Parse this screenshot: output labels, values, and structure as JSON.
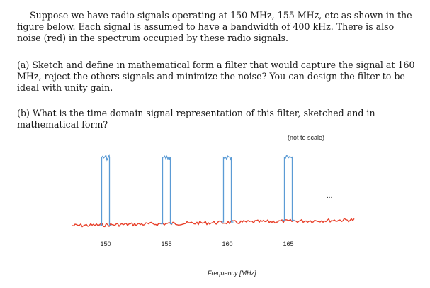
{
  "document": {
    "intro": "Suppose we have radio signals operating at 150 MHz, 155 MHz, etc as shown in the figure below.  Each signal is assumed to have a bandwidth of 400 kHz.  There is also noise (red) in the spectrum occupied by these radio signals.",
    "part_a": "(a) Sketch and define in mathematical form a filter that would capture the signal at 160 MHz, reject the others signals and minimize the noise?  You can design the filter to be ideal with unity gain.",
    "part_b": "(b) What is the time domain signal representation of this filter, sketched and in mathematical form?"
  },
  "figure": {
    "note": "(not to scale)",
    "xlabel": "Frequency [MHz]",
    "continuation": "...",
    "ticks": [
      "150",
      "155",
      "160",
      "165"
    ],
    "signal_color": "#5b9bd5",
    "noise_color": "#e8402a"
  },
  "chart_data": {
    "type": "line",
    "xlabel": "Frequency [MHz]",
    "note": "(not to scale)",
    "signal_centers_mhz": [
      150,
      155,
      160,
      165
    ],
    "signal_bandwidth_khz": 400,
    "tick_labels": [
      "150",
      "155",
      "160",
      "165"
    ]
  }
}
